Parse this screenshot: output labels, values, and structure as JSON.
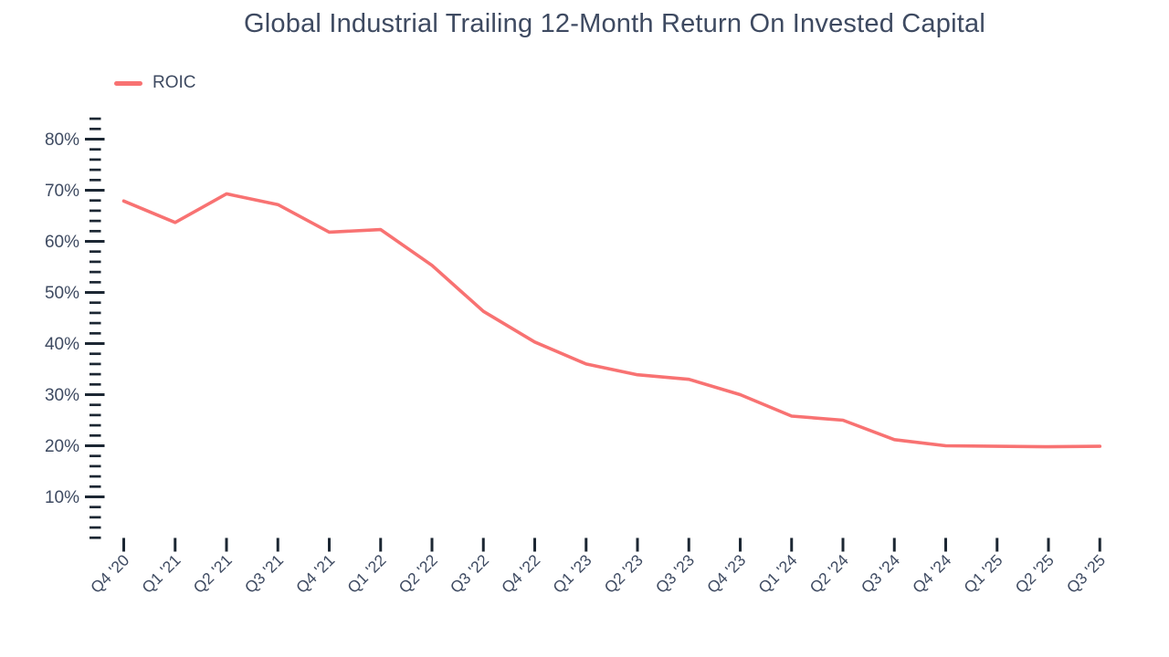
{
  "chart": {
    "title": "Global Industrial Trailing 12-Month Return On Invested Capital",
    "legend_label": "ROIC"
  },
  "chart_data": {
    "type": "line",
    "title": "Global Industrial Trailing 12-Month Return On Invested Capital",
    "categories": [
      "Q4 '20",
      "Q1 '21",
      "Q2 '21",
      "Q3 '21",
      "Q4 '21",
      "Q1 '22",
      "Q2 '22",
      "Q3 '22",
      "Q4 '22",
      "Q1 '23",
      "Q2 '23",
      "Q3 '23",
      "Q4 '23",
      "Q1 '24",
      "Q2 '24",
      "Q3 '24",
      "Q4 '24",
      "Q1 '25",
      "Q2 '25",
      "Q3 '25"
    ],
    "series": [
      {
        "name": "ROIC",
        "values": [
          67.9,
          63.7,
          69.3,
          67.2,
          61.8,
          62.3,
          55.3,
          46.3,
          40.3,
          36.0,
          33.9,
          33.0,
          30.0,
          25.8,
          25.0,
          21.2,
          20.0,
          19.9,
          19.8,
          19.9
        ]
      }
    ],
    "xlabel": "",
    "ylabel": "",
    "ylim": [
      0,
      86
    ],
    "y_major_ticks": [
      10,
      20,
      30,
      40,
      50,
      60,
      70,
      80
    ],
    "y_tick_labels": [
      "10%",
      "20%",
      "30%",
      "40%",
      "50%",
      "60%",
      "70%",
      "80%"
    ],
    "y_minor_tick_step": 2,
    "y_minor_tick_min": 2,
    "y_minor_tick_max": 84,
    "grid": false,
    "legend_position": "top-left",
    "colors": {
      "line": "#f87272",
      "text": "#3e4a61",
      "tick": "#1c2733",
      "background": "#ffffff"
    }
  }
}
